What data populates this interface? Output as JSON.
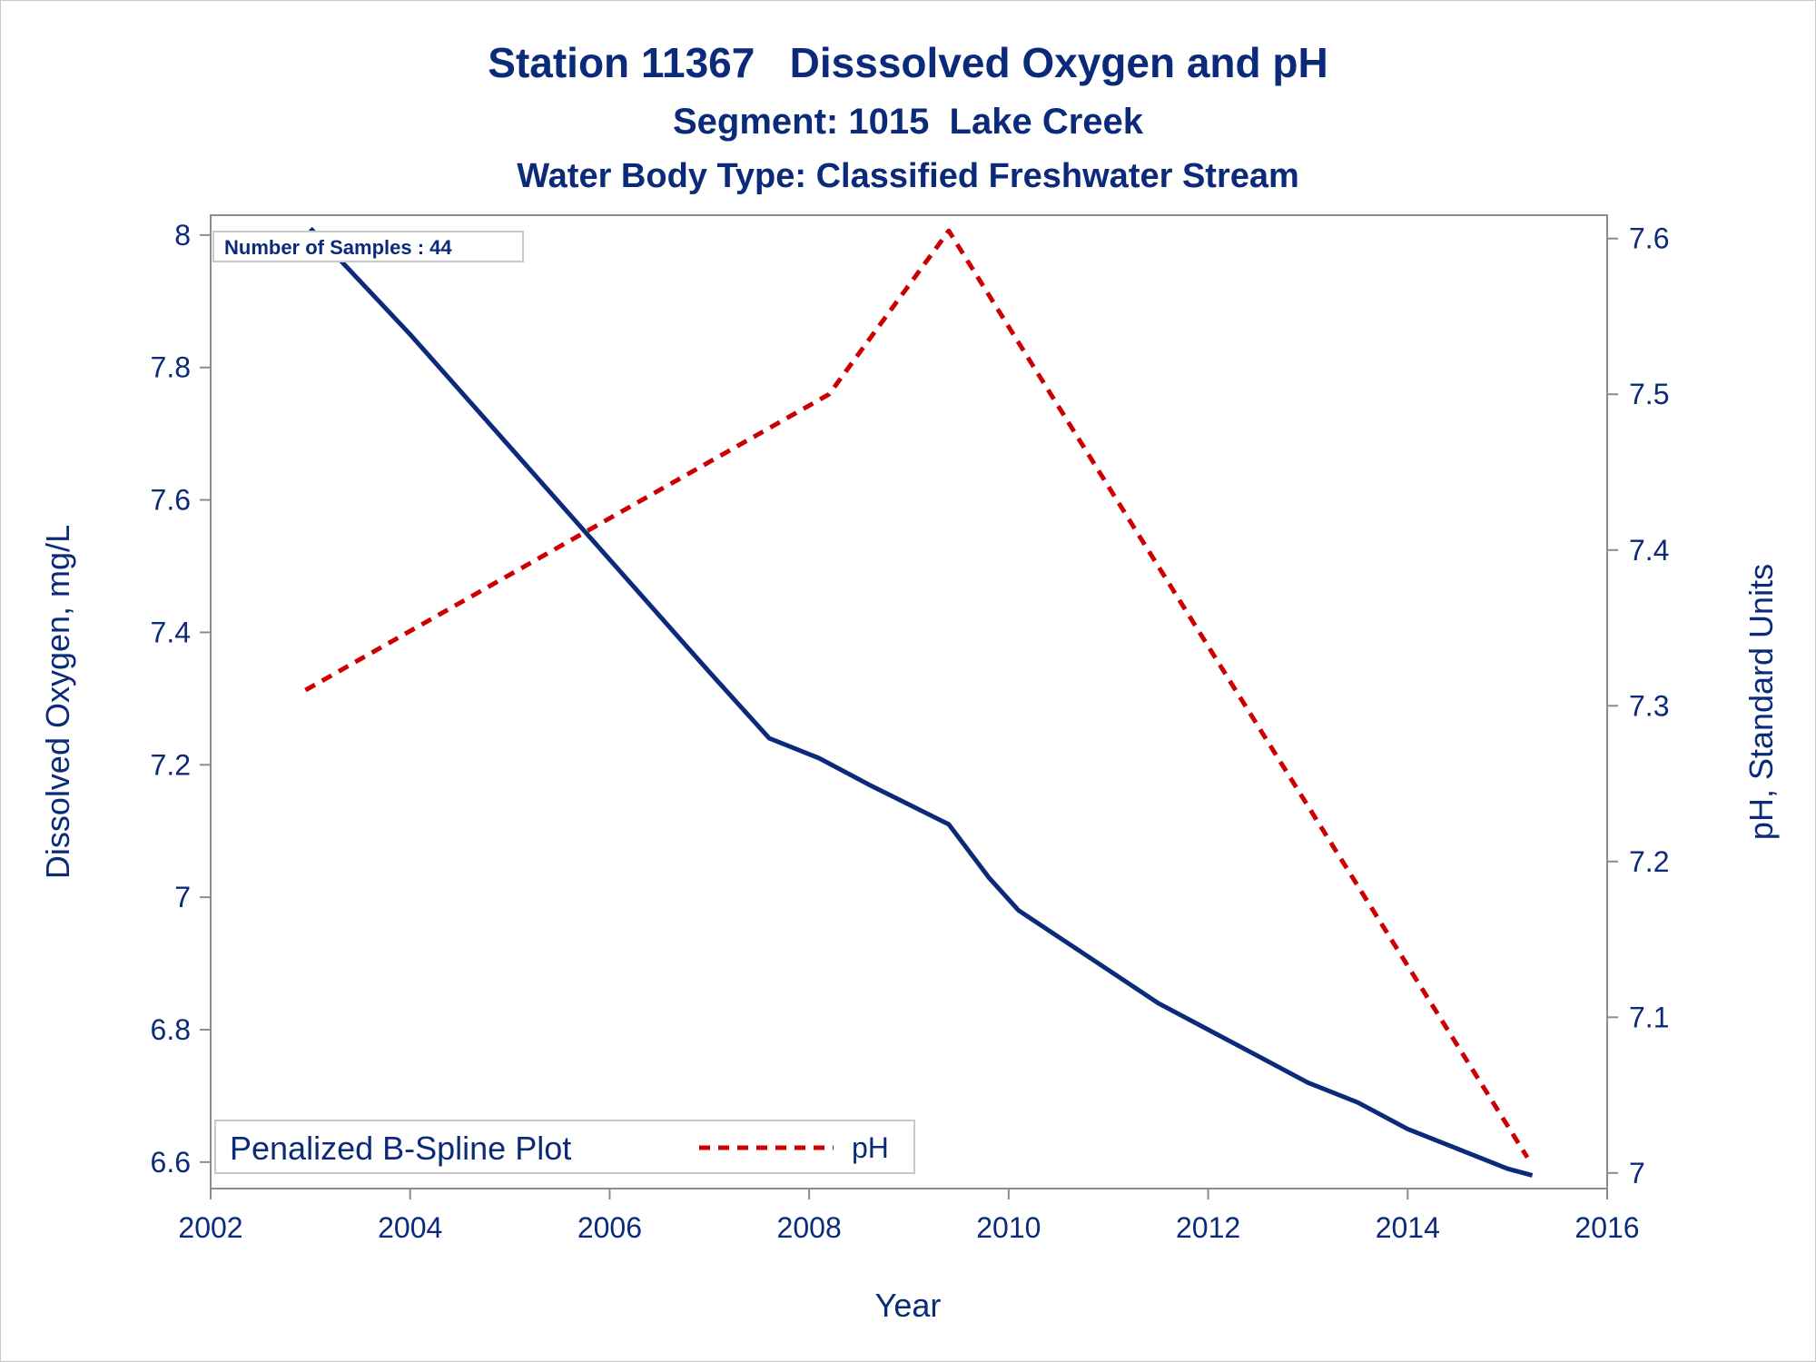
{
  "chart_data": {
    "type": "line",
    "title": "Station 11367   Disssolved Oxygen and pH",
    "subtitle": "Segment: 1015  Lake Creek",
    "subtitle2": "Water Body Type: Classified Freshwater Stream",
    "xlabel": "Year",
    "ylabel": "Dissolved Oxygen, mg/L",
    "y2label": "pH, Standard Units",
    "xlim": [
      2002,
      2016
    ],
    "ylim": [
      6.56,
      8.03
    ],
    "y2lim": [
      6.99,
      7.615
    ],
    "xticks": [
      "2002",
      "2004",
      "2006",
      "2008",
      "2010",
      "2012",
      "2014",
      "2016"
    ],
    "yticks": [
      "6.6",
      "6.8",
      "7",
      "7.2",
      "7.4",
      "7.6",
      "7.8",
      "8"
    ],
    "y2ticks": [
      "7",
      "7.1",
      "7.2",
      "7.3",
      "7.4",
      "7.5",
      "7.6"
    ],
    "annotation": "Number of Samples : 44",
    "grid": false,
    "legend_position": "bottom-left",
    "series": [
      {
        "name": "Penalized B-Spline Plot",
        "axis": "y",
        "color": "#0b2b7a",
        "style": "solid",
        "x": [
          2003.0,
          2004.0,
          2005.0,
          2006.0,
          2007.0,
          2007.6,
          2008.1,
          2008.6,
          2009.0,
          2009.4,
          2009.8,
          2010.1,
          2010.6,
          2011.0,
          2011.5,
          2012.0,
          2012.5,
          2013.0,
          2013.5,
          2014.0,
          2014.5,
          2015.0,
          2015.25
        ],
        "values": [
          8.01,
          7.85,
          7.68,
          7.51,
          7.34,
          7.24,
          7.21,
          7.17,
          7.14,
          7.11,
          7.03,
          6.98,
          6.93,
          6.89,
          6.84,
          6.8,
          6.76,
          6.72,
          6.69,
          6.65,
          6.62,
          6.59,
          6.58
        ]
      },
      {
        "name": "pH",
        "axis": "y2",
        "color": "#cc0000",
        "style": "dashed",
        "x": [
          2002.95,
          2008.2,
          2009.4,
          2015.2
        ],
        "values": [
          7.31,
          7.5,
          7.605,
          7.01
        ]
      }
    ]
  }
}
